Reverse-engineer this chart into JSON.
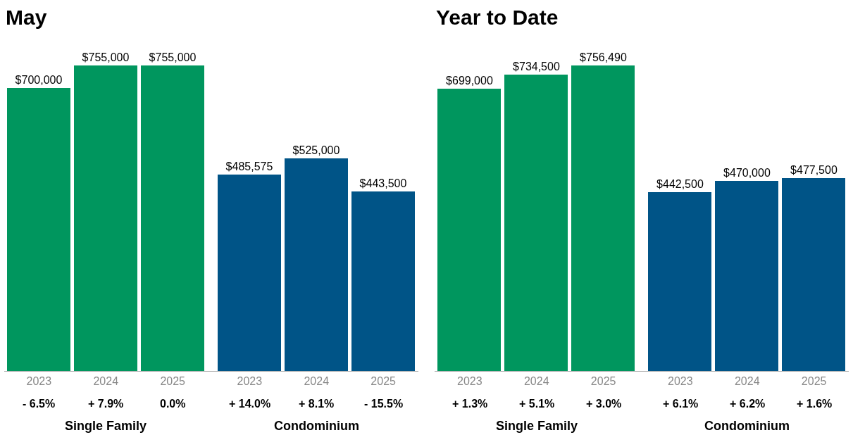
{
  "chart_data": [
    {
      "type": "bar",
      "title": "May",
      "categories": [
        "2023",
        "2024",
        "2025",
        "2023",
        "2024",
        "2025"
      ],
      "values": [
        700000,
        755000,
        755000,
        485575,
        525000,
        443500
      ],
      "colors": [
        "#00965e",
        "#00965e",
        "#00965e",
        "#005487",
        "#005487",
        "#005487"
      ],
      "value_labels": [
        "$700,000",
        "$755,000",
        "$755,000",
        "$485,575",
        "$525,000",
        "$443,500"
      ],
      "annotations": [
        "- 6.5%",
        "+ 7.9%",
        "0.0%",
        "+ 14.0%",
        "+ 8.1%",
        "- 15.5%",
        "Single Family",
        "Condominium"
      ]
    },
    {
      "type": "bar",
      "title": "Year to Date",
      "categories": [
        "2023",
        "2024",
        "2025",
        "2023",
        "2024",
        "2025"
      ],
      "values": [
        699000,
        734500,
        756490,
        442500,
        470000,
        477500
      ],
      "colors": [
        "#00965e",
        "#00965e",
        "#00965e",
        "#005487",
        "#005487",
        "#005487"
      ],
      "value_labels": [
        "$699,000",
        "$734,500",
        "$756,490",
        "$442,500",
        "$470,000",
        "$477,500"
      ],
      "annotations": [
        "+ 1.3%",
        "+ 5.1%",
        "+ 3.0%",
        "+ 6.1%",
        "+ 6.2%",
        "+ 1.6%",
        "Single Family",
        "Condominium"
      ]
    }
  ]
}
